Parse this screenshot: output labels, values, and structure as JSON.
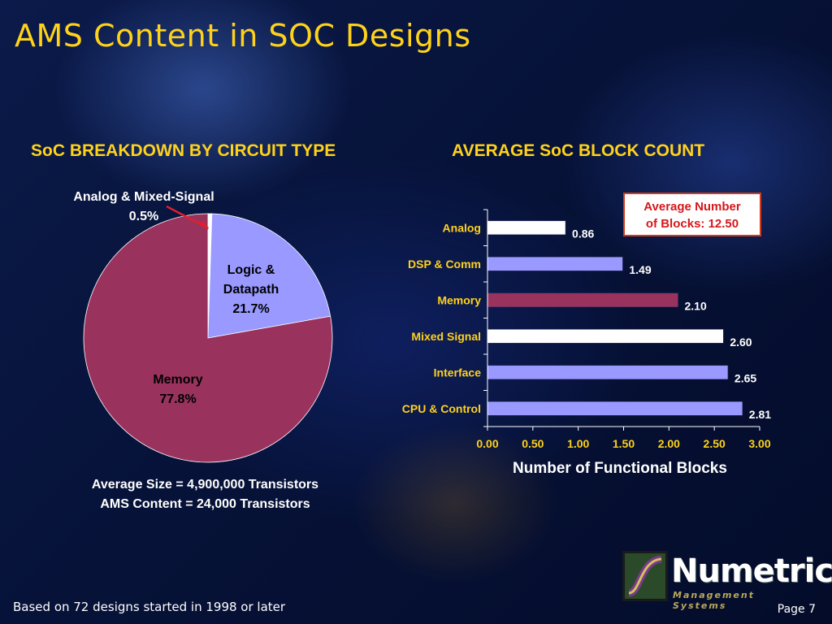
{
  "title": "AMS Content in SOC Designs",
  "left_heading": "SoC BREAKDOWN BY CIRCUIT TYPE",
  "right_heading": "AVERAGE SoC BLOCK COUNT",
  "summary_line1": "Average Size = 4,900,000 Transistors",
  "summary_line2": "AMS Content = 24,000 Transistors",
  "callout_line1": "Average Number",
  "callout_line2": "of Blocks: 12.50",
  "footer_note": "Based on 72 designs started in 1998 or later",
  "page_number": "Page 7",
  "logo": {
    "word": "Numetrics",
    "subtitle": "Management Systems"
  },
  "colors": {
    "title": "#ffd21a",
    "memory": "#99335e",
    "logic": "#9999ff",
    "white_bar": "#ffffff",
    "arrow": "#e0202a"
  },
  "chart_data": [
    {
      "type": "pie",
      "title": "SoC BREAKDOWN BY CIRCUIT TYPE",
      "slices": [
        {
          "label": "Analog & Mixed-Signal",
          "value": 0.5,
          "value_label": "0.5%",
          "color": "#ffffff"
        },
        {
          "label_lines": [
            "Logic &",
            "Datapath"
          ],
          "value": 21.7,
          "value_label": "21.7%",
          "color": "#9999ff"
        },
        {
          "label": "Memory",
          "value": 77.8,
          "value_label": "77.8%",
          "color": "#99335e"
        }
      ]
    },
    {
      "type": "bar",
      "orientation": "horizontal",
      "title": "AVERAGE SoC BLOCK COUNT",
      "xlabel": "Number of Functional Blocks",
      "xlim": [
        0,
        3
      ],
      "x_ticks": [
        "0.00",
        "0.50",
        "1.00",
        "1.50",
        "2.00",
        "2.50",
        "3.00"
      ],
      "grid": false,
      "categories": [
        "Analog",
        "DSP & Comm",
        "Memory",
        "Mixed Signal",
        "Interface",
        "CPU & Control"
      ],
      "values": [
        0.86,
        1.49,
        2.1,
        2.6,
        2.65,
        2.81
      ],
      "value_labels": [
        "0.86",
        "1.49",
        "2.10",
        "2.60",
        "2.65",
        "2.81"
      ],
      "colors": [
        "#ffffff",
        "#9999ff",
        "#99335e",
        "#ffffff",
        "#9999ff",
        "#9999ff"
      ]
    }
  ]
}
